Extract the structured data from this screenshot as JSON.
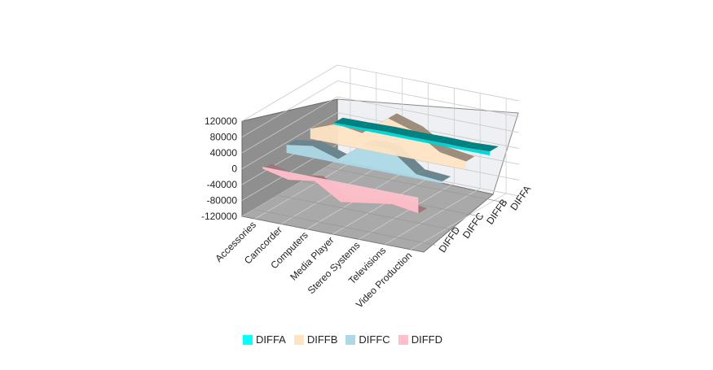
{
  "chart_data": {
    "type": "area",
    "categories": [
      "Accessories",
      "Camcorder",
      "Computers",
      "Media Player",
      "Stereo Systems",
      "Televisions",
      "Video Production"
    ],
    "series": [
      {
        "name": "DIFFA",
        "values": [
          5000,
          6000,
          8000,
          7000,
          8000,
          7000,
          10000
        ],
        "color": "#00d2d2"
      },
      {
        "name": "DIFFB",
        "values": [
          25000,
          50000,
          40000,
          90000,
          70000,
          30000,
          20000
        ],
        "color": "#ffe4c4"
      },
      {
        "name": "DIFFC",
        "values": [
          20000,
          30000,
          10000,
          60000,
          60000,
          10000,
          5000
        ],
        "color": "#add8e6"
      },
      {
        "name": "DIFFD",
        "values": [
          -5000,
          -20000,
          -10000,
          -50000,
          -40000,
          -30000,
          -40000
        ],
        "color": "#ffc0cb"
      }
    ],
    "y_ticks": [
      "120000",
      "80000",
      "40000",
      "0",
      "-40000",
      "-80000",
      "-120000"
    ],
    "ylim": [
      -120000,
      120000
    ],
    "grid": true,
    "legend_position": "bottom"
  }
}
